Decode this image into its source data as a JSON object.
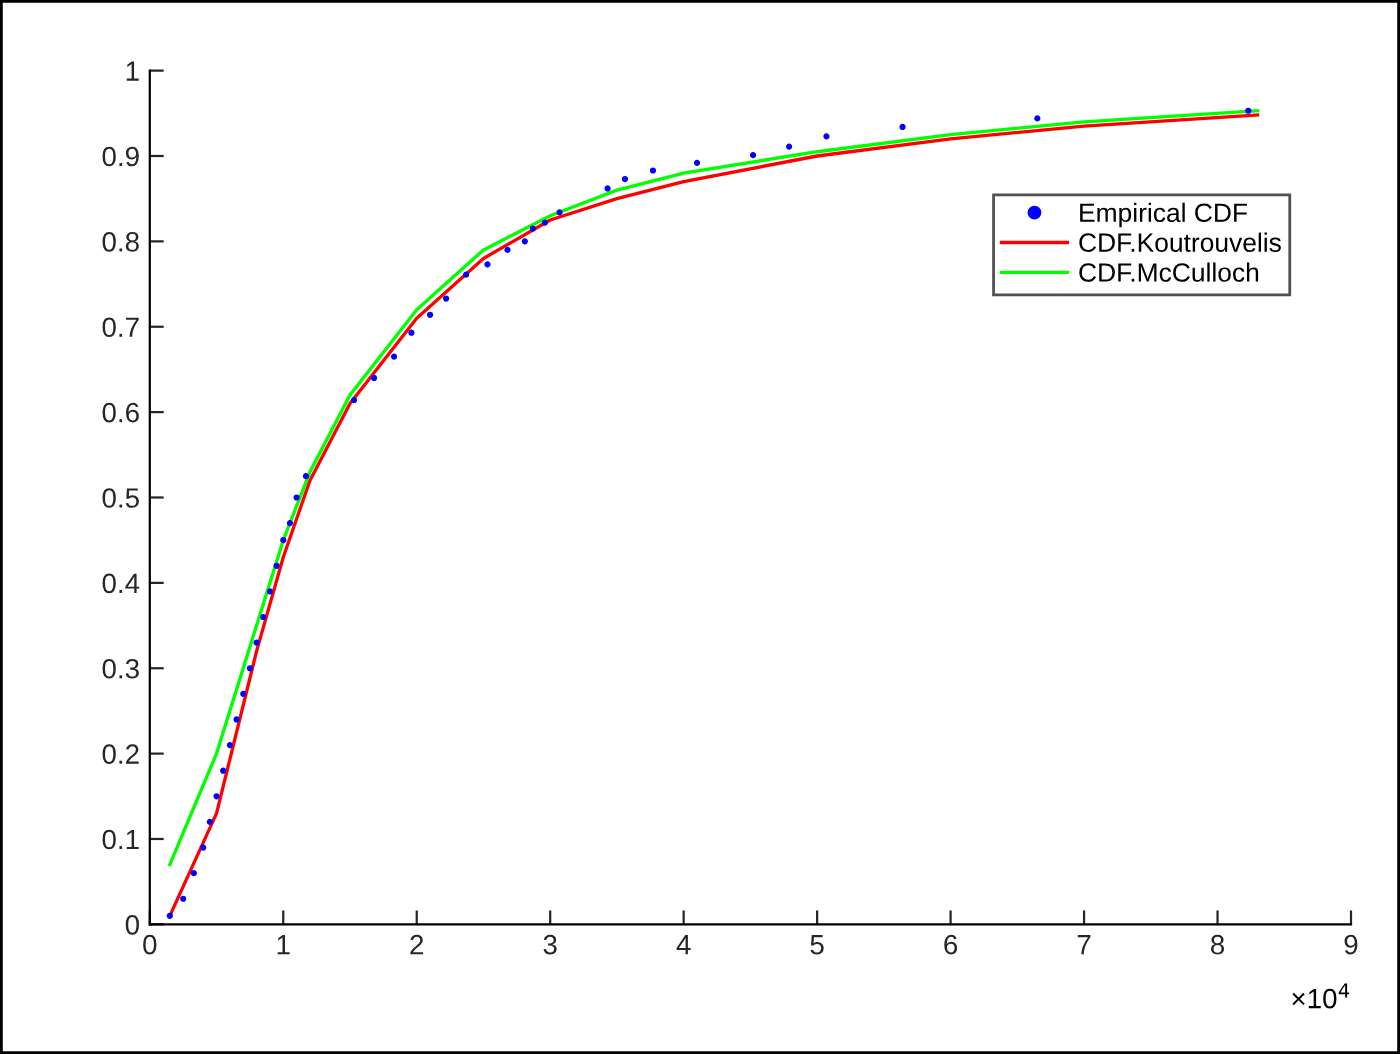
{
  "chart_data": {
    "type": "line",
    "xlim": [
      0,
      9
    ],
    "xticks": [
      0,
      1,
      2,
      3,
      4,
      5,
      6,
      7,
      8,
      9
    ],
    "ylim": [
      0,
      1
    ],
    "yticks": [
      0,
      {
        "value": 0.1,
        "label": "0.1"
      },
      {
        "value": 0.2,
        "label": "0.2"
      },
      {
        "value": 0.3,
        "label": "0.3"
      },
      {
        "value": 0.4,
        "label": "0.4"
      },
      {
        "value": 0.5,
        "label": "0.5"
      },
      {
        "value": 0.6,
        "label": "0.6"
      },
      {
        "value": 0.7,
        "label": "0.7"
      },
      {
        "value": 0.8,
        "label": "0.8"
      },
      {
        "value": 0.9,
        "label": "0.9"
      },
      1
    ],
    "annotations": [
      "×10$^{4}$"
    ],
    "legend": "top right",
    "grid": false,
    "series": [
      {
        "name": "Empirical CDF",
        "type": "scatter",
        "marker": "circle",
        "color": "#0000ff",
        "x": [
          0.15,
          0.25,
          0.33,
          0.4,
          0.45,
          0.5,
          0.55,
          0.6,
          0.65,
          0.7,
          0.75,
          0.8,
          0.85,
          0.9,
          0.95,
          1.0,
          1.05,
          1.1,
          1.17,
          1.53,
          1.68,
          1.83,
          1.96,
          2.1,
          2.22,
          2.37,
          2.53,
          2.68,
          2.81,
          2.87,
          2.96,
          3.07,
          3.43,
          3.56,
          3.77,
          4.1,
          4.52,
          4.79,
          5.07,
          5.64,
          6.65,
          8.23
        ],
        "values": [
          0.01,
          0.03,
          0.06,
          0.09,
          0.12,
          0.15,
          0.18,
          0.21,
          0.24,
          0.27,
          0.3,
          0.33,
          0.36,
          0.39,
          0.42,
          0.45,
          0.47,
          0.5,
          0.525,
          0.614,
          0.64,
          0.665,
          0.693,
          0.714,
          0.733,
          0.761,
          0.773,
          0.79,
          0.8,
          0.815,
          0.822,
          0.834,
          0.862,
          0.873,
          0.883,
          0.892,
          0.901,
          0.911,
          0.923,
          0.934,
          0.944,
          0.953
        ]
      },
      {
        "name": "CDF.Koutrouvelis",
        "color": "#ff0000",
        "x": [
          0.15,
          0.5,
          0.8,
          1.0,
          1.2,
          1.5,
          2.0,
          2.5,
          3.0,
          3.5,
          4.0,
          5.0,
          6.0,
          7.0,
          8.3
        ],
        "values": [
          0.01,
          0.13,
          0.32,
          0.43,
          0.52,
          0.61,
          0.71,
          0.78,
          0.825,
          0.85,
          0.87,
          0.9,
          0.92,
          0.935,
          0.948
        ]
      },
      {
        "name": "CDF.McCulloch",
        "color": "#00ff00",
        "x": [
          0.15,
          0.5,
          0.8,
          1.0,
          1.2,
          1.5,
          2.0,
          2.5,
          3.0,
          3.5,
          4.0,
          5.0,
          6.0,
          7.0,
          8.3
        ],
        "values": [
          0.07,
          0.2,
          0.35,
          0.45,
          0.53,
          0.62,
          0.72,
          0.79,
          0.83,
          0.86,
          0.88,
          0.905,
          0.925,
          0.94,
          0.953
        ]
      }
    ]
  }
}
